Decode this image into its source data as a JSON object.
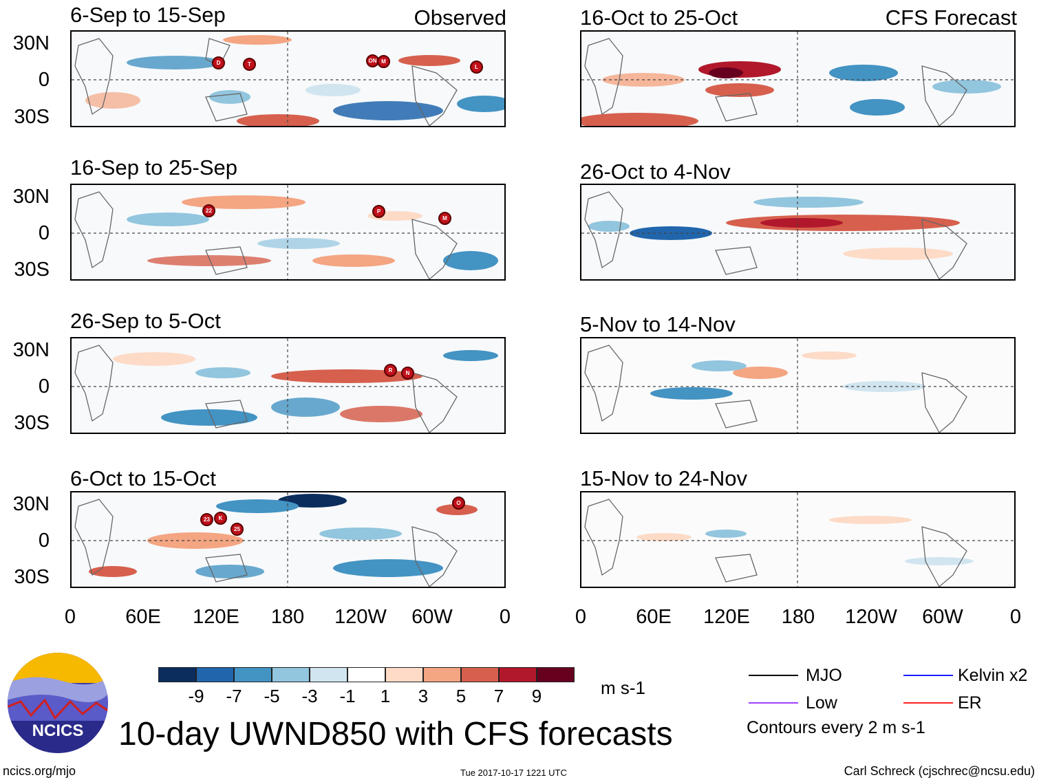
{
  "observed_label": "Observed",
  "forecast_label": "CFS Forecast",
  "lat_labels": [
    "30N",
    "0",
    "30S"
  ],
  "lon_labels": [
    "0",
    "60E",
    "120E",
    "180",
    "120W",
    "60W",
    "0"
  ],
  "observed_panels": [
    {
      "title": "6-Sep to 15-Sep",
      "storms": [
        "D",
        "T",
        "ON",
        "M",
        "L"
      ]
    },
    {
      "title": "16-Sep to 25-Sep",
      "storms": [
        "22",
        "P",
        "M"
      ]
    },
    {
      "title": "26-Sep to 5-Oct",
      "storms": [
        "R",
        "N"
      ]
    },
    {
      "title": "6-Oct to 15-Oct",
      "storms": [
        "23",
        "K",
        "25",
        "O"
      ]
    }
  ],
  "forecast_panels": [
    {
      "title": "16-Oct to 25-Oct"
    },
    {
      "title": "26-Oct to 4-Nov"
    },
    {
      "title": "5-Nov to 14-Nov"
    },
    {
      "title": "15-Nov to 24-Nov"
    }
  ],
  "colorbar": {
    "labels": [
      "-9",
      "-7",
      "-5",
      "-3",
      "-1",
      "1",
      "3",
      "5",
      "7",
      "9"
    ],
    "colors": [
      "#0b2d5e",
      "#2166ac",
      "#4393c3",
      "#92c5de",
      "#d1e5f0",
      "#ffffff",
      "#fddbc7",
      "#f4a582",
      "#d6604d",
      "#b2182b",
      "#67001f"
    ],
    "unit": "m s-1"
  },
  "legend": {
    "mjo": "MJO",
    "kelvin": "Kelvin x2",
    "low": "Low",
    "er": "ER",
    "contours": "Contours every 2 m s-1",
    "colors": {
      "mjo": "#000000",
      "kelvin": "#1a1aff",
      "low": "#a040ff",
      "er": "#ff2020"
    }
  },
  "logo_text": "NCICS",
  "main_title": "10-day UWND850 with CFS forecasts",
  "footer": {
    "left": "ncics.org/mjo",
    "center": "Tue 2017-10-17 1221 UTC",
    "right": "Carl Schreck (cjschrec@ncsu.edu)"
  }
}
